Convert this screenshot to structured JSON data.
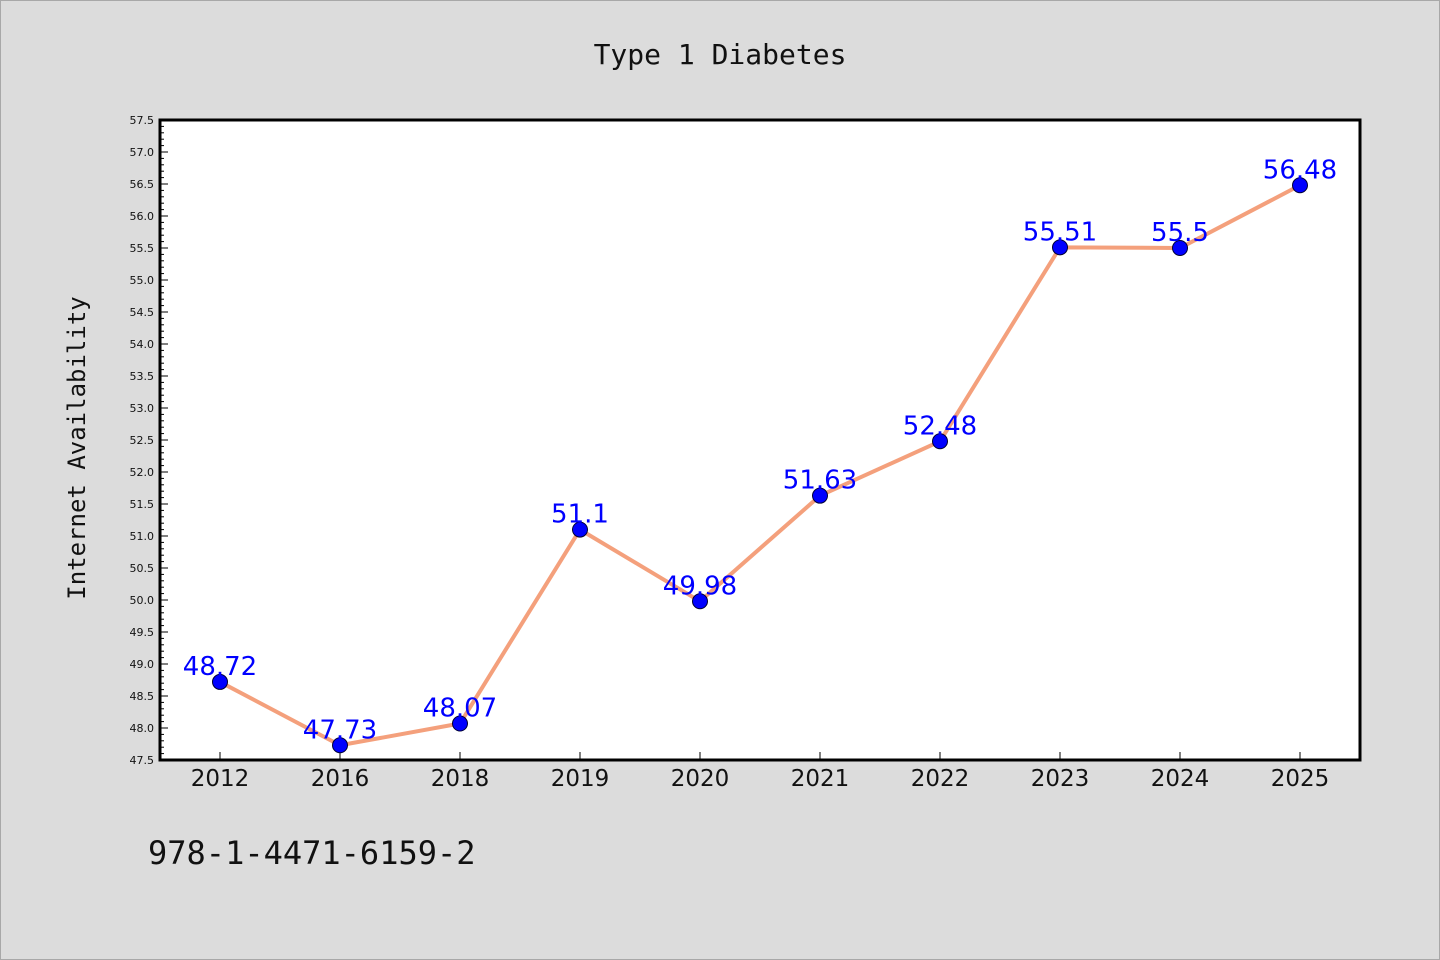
{
  "chart_data": {
    "type": "line",
    "title": "Type 1 Diabetes",
    "xlabel": "",
    "ylabel": "Internet Availability",
    "categories": [
      "2012",
      "2016",
      "2018",
      "2019",
      "2020",
      "2021",
      "2022",
      "2023",
      "2024",
      "2025"
    ],
    "series": [
      {
        "values": [
          48.72,
          47.73,
          48.07,
          51.1,
          49.98,
          51.63,
          52.48,
          55.51,
          55.5,
          56.48
        ],
        "data_labels": [
          "48.72",
          "47.73",
          "48.07",
          "51.1",
          "49.98",
          "51.63",
          "52.48",
          "55.51",
          "55.5",
          "56.48"
        ]
      }
    ],
    "ylim": [
      47.5,
      57.5
    ],
    "yticks": [
      "47.5",
      "48.0",
      "48.5",
      "49.0",
      "49.5",
      "50.0",
      "50.5",
      "51.0",
      "51.5",
      "52.0",
      "52.5",
      "53.0",
      "53.5",
      "54.0",
      "54.5",
      "55.0",
      "55.5",
      "56.0",
      "56.5",
      "57.0",
      "57.5"
    ],
    "grid": false,
    "legend": "none",
    "colors": {
      "line": "#f4a07c",
      "marker": "#0000ff",
      "data_label": "#0000ff",
      "background": "#dcdcdc",
      "plot_background": "#ffffff"
    }
  },
  "footnote": "978-1-4471-6159-2"
}
